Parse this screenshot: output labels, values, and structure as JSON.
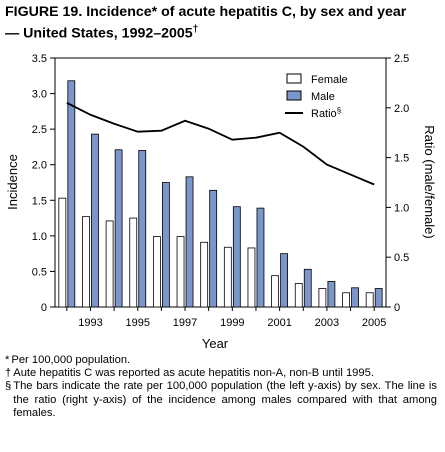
{
  "title_line1": "FIGURE 19. Incidence* of acute hepatitis C, by sex and year",
  "title_line2": "— United States, 1992–2005",
  "title_mark": "†",
  "chart_data": {
    "type": "bar",
    "categories": [
      "1992",
      "1993",
      "1994",
      "1995",
      "1996",
      "1997",
      "1998",
      "1999",
      "2000",
      "2001",
      "2002",
      "2003",
      "2004",
      "2005"
    ],
    "x_tick_labels": [
      "1993",
      "1995",
      "1997",
      "1999",
      "2001",
      "2003",
      "2005"
    ],
    "xlabel": "Year",
    "ylabel": "Incidence",
    "y2label": "Ratio (male/female)",
    "ylim": [
      0,
      3.5
    ],
    "y2lim": [
      0,
      2.5
    ],
    "y_ticks": [
      "0",
      "0.5",
      "1.0",
      "1.5",
      "2.0",
      "2.5",
      "3.0",
      "3.5"
    ],
    "y2_ticks": [
      "0",
      "0.5",
      "1.0",
      "1.5",
      "2.0",
      "2.5"
    ],
    "series": [
      {
        "name": "Female",
        "type": "bar",
        "axis": "left",
        "color": "#ffffff",
        "values": [
          1.53,
          1.27,
          1.21,
          1.25,
          0.99,
          0.99,
          0.91,
          0.84,
          0.83,
          0.44,
          0.33,
          0.26,
          0.2,
          0.2
        ]
      },
      {
        "name": "Male",
        "type": "bar",
        "axis": "left",
        "color": "#7b96c8",
        "values": [
          3.18,
          2.43,
          2.21,
          2.2,
          1.75,
          1.83,
          1.64,
          1.41,
          1.39,
          0.75,
          0.53,
          0.36,
          0.27,
          0.26
        ]
      },
      {
        "name": "Ratio",
        "type": "line",
        "axis": "right",
        "color": "#000000",
        "values": [
          2.05,
          1.93,
          1.84,
          1.76,
          1.77,
          1.87,
          1.79,
          1.68,
          1.7,
          1.75,
          1.61,
          1.43,
          1.33,
          1.23
        ]
      }
    ],
    "legend": {
      "position": "top-right",
      "ratio_mark": "§"
    }
  },
  "footnotes": [
    {
      "mark": "*",
      "text": "Per 100,000 population."
    },
    {
      "mark": "†",
      "text": "Aute hepatitis C was reported as acute hepatitis non-A, non-B until 1995."
    },
    {
      "mark": "§",
      "text": "The bars indicate the rate per 100,000 population (the left y-axis) by sex. The line is the ratio (right y-axis) of the incidence among males compared with that among females."
    }
  ]
}
